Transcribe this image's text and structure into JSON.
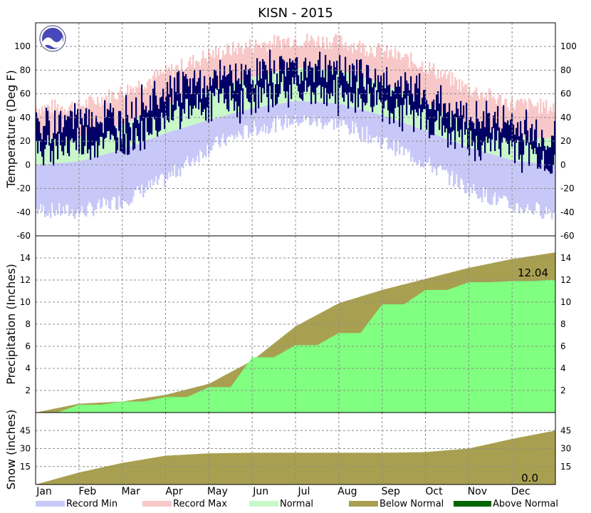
{
  "title": "KISN - 2015",
  "colors": {
    "record_min": "#c8c8f8",
    "record_max": "#f8c8c8",
    "normal": "#c8f8c8",
    "below_normal": "#a8a050",
    "above_normal": "#006400",
    "observed_temp": "#000066",
    "observed_precip": "#80ff80"
  },
  "months": [
    "Jan",
    "Feb",
    "Mar",
    "Apr",
    "May",
    "Jun",
    "Jul",
    "Aug",
    "Sep",
    "Oct",
    "Nov",
    "Dec"
  ],
  "legend": [
    "Record Min",
    "Record Max",
    "Normal",
    "Below Normal",
    "Above Normal"
  ],
  "chart_data": [
    {
      "type": "area",
      "panel": "temperature",
      "ylabel": "Temperature (Deg F)",
      "ylim": [
        -60,
        120
      ],
      "yticks": [
        -60,
        -40,
        -20,
        0,
        20,
        40,
        60,
        80,
        100
      ],
      "grid": true,
      "x": [
        "Jan 1",
        "Feb 1",
        "Mar 1",
        "Apr 1",
        "May 1",
        "Jun 1",
        "Jul 1",
        "Aug 1",
        "Sep 1",
        "Oct 1",
        "Nov 1",
        "Dec 1",
        "Dec 31"
      ],
      "series": [
        {
          "name": "Record Max",
          "values": [
            48,
            50,
            62,
            78,
            93,
            101,
            106,
            104,
            96,
            84,
            64,
            52,
            48
          ]
        },
        {
          "name": "Normal",
          "values": [
            22,
            24,
            34,
            50,
            63,
            74,
            82,
            80,
            69,
            52,
            34,
            24,
            22
          ]
        },
        {
          "name": "Normal",
          "values": [
            0,
            3,
            13,
            27,
            38,
            48,
            54,
            52,
            42,
            29,
            15,
            4,
            0
          ]
        },
        {
          "name": "Record Min",
          "values": [
            -38,
            -40,
            -30,
            -12,
            15,
            30,
            38,
            35,
            20,
            2,
            -20,
            -35,
            -40
          ]
        },
        {
          "name": "",
          "values": [
            20,
            30,
            28,
            55,
            60,
            66,
            75,
            70,
            62,
            48,
            30,
            25,
            10
          ]
        }
      ]
    },
    {
      "type": "area",
      "panel": "precipitation",
      "ylabel": "Precipitation (Inches)",
      "ylim": [
        0,
        16
      ],
      "yticks": [
        2,
        4,
        6,
        8,
        10,
        12,
        14
      ],
      "grid": true,
      "annotation": "12.04",
      "x": [
        "Jan 1",
        "Feb 1",
        "Mar 1",
        "Apr 1",
        "May 1",
        "Jun 1",
        "Jul 1",
        "Aug 1",
        "Sep 1",
        "Oct 1",
        "Nov 1",
        "Dec 1",
        "Dec 31"
      ],
      "series": [
        {
          "name": "",
          "values": [
            0,
            0.8,
            1.0,
            1.6,
            2.6,
            4.7,
            7.8,
            9.9,
            11.1,
            12.1,
            13.1,
            13.9,
            14.5
          ]
        },
        {
          "name": "",
          "values": [
            0,
            0.7,
            1.0,
            1.4,
            2.3,
            5.0,
            6.1,
            7.2,
            9.8,
            11.1,
            11.8,
            11.9,
            12.04
          ]
        }
      ]
    },
    {
      "type": "area",
      "panel": "snow",
      "ylabel": "Snow (inches)",
      "ylim": [
        0,
        60
      ],
      "yticks": [
        15,
        30,
        45
      ],
      "grid": true,
      "annotation": "0.0",
      "x": [
        "Jan 1",
        "Feb 1",
        "Mar 1",
        "Apr 1",
        "May 1",
        "Jun 1",
        "Jul 1",
        "Aug 1",
        "Sep 1",
        "Oct 1",
        "Nov 1",
        "Dec 1",
        "Dec 31"
      ],
      "series": [
        {
          "name": "",
          "values": [
            0,
            10,
            18,
            24,
            26,
            26.5,
            26.5,
            26.5,
            26.5,
            27,
            30,
            38,
            45
          ]
        },
        {
          "name": "",
          "values": [
            0,
            0,
            0,
            0,
            0,
            0,
            0,
            0,
            0,
            0,
            0,
            0,
            0
          ]
        }
      ]
    }
  ]
}
